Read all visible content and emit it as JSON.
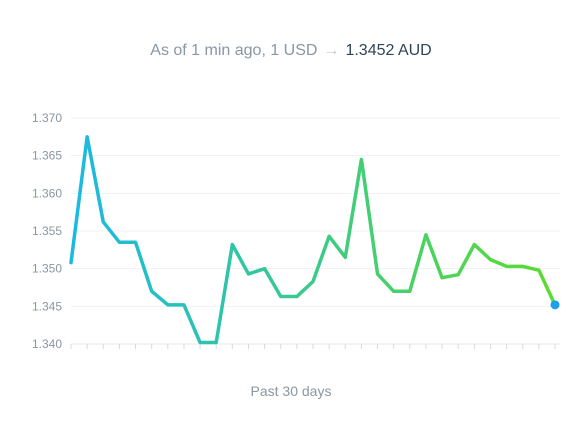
{
  "header": {
    "prefix": "As of 1 min ago, 1 USD",
    "arrow": "→",
    "target": "1.3452 AUD"
  },
  "chart_data": {
    "type": "line",
    "xlabel": "Past 30 days",
    "ylabel": "",
    "ylim": [
      1.34,
      1.37
    ],
    "yticks": [
      "1.370",
      "1.365",
      "1.360",
      "1.355",
      "1.350",
      "1.345",
      "1.340"
    ],
    "grid": true,
    "series": [
      {
        "values": [
          1.3508,
          1.3675,
          1.3562,
          1.3535,
          1.3535,
          1.347,
          1.3452,
          1.3452,
          1.3402,
          1.3402,
          1.3532,
          1.3493,
          1.35,
          1.3463,
          1.3463,
          1.3483,
          1.3543,
          1.3515,
          1.3645,
          1.3493,
          1.347,
          1.347,
          1.3545,
          1.3488,
          1.3492,
          1.3532,
          1.3512,
          1.3503,
          1.3503,
          1.3498,
          1.3452
        ],
        "gradient": [
          "#1ab9e3",
          "#5cdc2e"
        ],
        "last_point_color": "#1a9fe8"
      }
    ]
  }
}
